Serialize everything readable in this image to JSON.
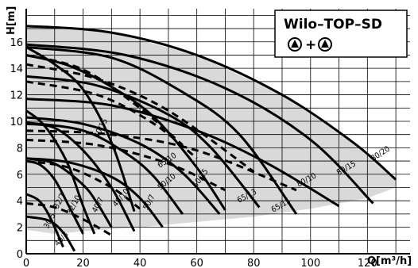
{
  "chart_data": {
    "type": "line",
    "title": "Wilo–TOP–SD",
    "symbol_plus": "+",
    "xlabel": "Q[m³/h]",
    "ylabel": "H[m]",
    "xlim": [
      0,
      135
    ],
    "ylim": [
      0,
      18.5
    ],
    "x_ticks": [
      0,
      20,
      40,
      60,
      80,
      100,
      120
    ],
    "x_tick_labels": [
      "0",
      "20",
      "40",
      "60",
      "80",
      "100",
      "120"
    ],
    "y_ticks": [
      0,
      2,
      4,
      6,
      8,
      10,
      12,
      14,
      16
    ],
    "y_tick_labels": [
      "0",
      "2",
      "4",
      "6",
      "8",
      "10",
      "12",
      "14",
      "16"
    ],
    "grid": true,
    "series": [
      {
        "name": "30/5",
        "style": "solid",
        "label_at": [
          9,
          2.4
        ],
        "label_angle": -62,
        "x": [
          0,
          4,
          7,
          10,
          13
        ],
        "y": [
          4.5,
          4.1,
          3.3,
          2.0,
          0.5
        ]
      },
      {
        "name": "40/3",
        "style": "solid",
        "label_at": [
          13,
          1.0
        ],
        "label_angle": -48,
        "x": [
          0,
          8,
          13,
          17
        ],
        "y": [
          2.8,
          2.5,
          1.6,
          0.2
        ]
      },
      {
        "name": "32/7",
        "style": "solid",
        "label_at": [
          12.5,
          3.9
        ],
        "label_angle": -62,
        "x": [
          0,
          5,
          10,
          15,
          20
        ],
        "y": [
          7.0,
          6.7,
          5.6,
          3.6,
          1.5
        ]
      },
      {
        "name": "32/10",
        "style": "solid",
        "label_at": [
          17.5,
          3.6
        ],
        "label_angle": -62,
        "x": [
          0,
          5,
          10,
          15,
          20,
          24
        ],
        "y": [
          10.8,
          10.0,
          8.6,
          6.6,
          3.6,
          1.5
        ]
      },
      {
        "name": "40/7",
        "style": "solid",
        "label_at": [
          26,
          3.6
        ],
        "label_angle": -62,
        "x": [
          0,
          10,
          20,
          25,
          30
        ],
        "y": [
          7.2,
          6.8,
          5.2,
          3.8,
          2.0
        ]
      },
      {
        "name": "40/10",
        "style": "solid",
        "label_at": [
          34,
          4.1
        ],
        "label_angle": -50,
        "x": [
          0,
          10,
          20,
          30,
          38
        ],
        "y": [
          9.8,
          9.5,
          7.8,
          5.0,
          1.7
        ]
      },
      {
        "name": "50/7",
        "style": "solid",
        "label_at": [
          44,
          3.8
        ],
        "label_angle": -62,
        "x": [
          0,
          15,
          30,
          40,
          48
        ],
        "y": [
          7.2,
          6.9,
          5.8,
          4.2,
          2.0
        ]
      },
      {
        "name": "50/10",
        "style": "solid",
        "label_at": [
          50,
          5.3
        ],
        "label_angle": -40,
        "x": [
          0,
          20,
          35,
          45,
          55
        ],
        "y": [
          9.9,
          9.3,
          7.6,
          5.8,
          3.0
        ]
      },
      {
        "name": "65/10",
        "style": "solid",
        "label_at": [
          50,
          6.9
        ],
        "label_angle": -34,
        "x": [
          0,
          20,
          40,
          55,
          68
        ],
        "y": [
          10.3,
          9.8,
          8.3,
          6.1,
          3.0
        ]
      },
      {
        "name": "65/13",
        "style": "solid",
        "label_at": [
          78,
          4.2
        ],
        "label_angle": -28,
        "x": [
          0,
          25,
          50,
          65,
          82
        ],
        "y": [
          13.4,
          12.7,
          10.5,
          8.0,
          3.5
        ]
      },
      {
        "name": "65/15",
        "style": "solid",
        "label_at": [
          90,
          3.5
        ],
        "label_angle": -30,
        "x": [
          0,
          30,
          55,
          75,
          95
        ],
        "y": [
          15.6,
          14.8,
          12.2,
          9.0,
          3.0
        ]
      },
      {
        "name": "50/15",
        "style": "solid",
        "label_at": [
          62,
          5.6
        ],
        "label_angle": -55,
        "x": [
          0,
          15,
          30,
          45,
          60,
          70
        ],
        "y": [
          15.0,
          14.2,
          12.6,
          10.3,
          6.5,
          3.3
        ]
      },
      {
        "name": "40/15",
        "style": "solid",
        "label_at": [
          27,
          9.4
        ],
        "label_angle": -62,
        "x": [
          0,
          10,
          20,
          30,
          38
        ],
        "y": [
          15.6,
          14.3,
          12.4,
          8.4,
          3.2
        ]
      },
      {
        "name": "80/10",
        "style": "solid",
        "label_at": [
          99,
          5.4
        ],
        "label_angle": -28,
        "x": [
          0,
          30,
          60,
          85,
          110
        ],
        "y": [
          11.7,
          11.2,
          9.3,
          6.8,
          3.6
        ]
      },
      {
        "name": "80/15",
        "style": "solid",
        "label_at": [
          113,
          6.3
        ],
        "label_angle": -30,
        "x": [
          0,
          35,
          70,
          100,
          122
        ],
        "y": [
          15.8,
          15.0,
          12.5,
          8.6,
          3.8
        ]
      },
      {
        "name": "80/20",
        "style": "solid",
        "label_at": [
          125,
          7.4
        ],
        "label_angle": -33,
        "x": [
          0,
          30,
          60,
          90,
          115,
          130
        ],
        "y": [
          17.2,
          16.7,
          15.0,
          12.0,
          8.4,
          5.6
        ]
      },
      {
        "name": "",
        "style": "dashed",
        "x": [
          0,
          10,
          20,
          30
        ],
        "y": [
          3.8,
          3.5,
          2.6,
          1.4
        ]
      },
      {
        "name": "",
        "style": "dashed",
        "x": [
          0,
          15,
          30,
          40
        ],
        "y": [
          7.0,
          6.5,
          5.0,
          3.4
        ]
      },
      {
        "name": "",
        "style": "dashed",
        "x": [
          0,
          25,
          50,
          70
        ],
        "y": [
          8.6,
          8.2,
          6.8,
          4.8
        ]
      },
      {
        "name": "",
        "style": "dashed",
        "x": [
          0,
          25,
          45,
          60
        ],
        "y": [
          13.0,
          12.0,
          9.8,
          7.2
        ]
      },
      {
        "name": "",
        "style": "dashed",
        "x": [
          0,
          25,
          50,
          80
        ],
        "y": [
          14.3,
          13.2,
          10.8,
          6.2
        ]
      },
      {
        "name": "",
        "style": "dashed",
        "x": [
          0,
          20,
          40,
          55
        ],
        "y": [
          15.0,
          13.9,
          11.0,
          8.2
        ]
      },
      {
        "name": "",
        "style": "dashed",
        "x": [
          0,
          30,
          60,
          95
        ],
        "y": [
          9.3,
          9.0,
          7.8,
          4.8
        ]
      }
    ],
    "envelope": {
      "x": [
        0,
        30,
        60,
        90,
        115,
        130,
        130,
        120,
        100,
        80,
        60,
        40,
        20,
        10,
        0
      ],
      "y": [
        17.2,
        16.7,
        15.0,
        12.0,
        8.4,
        5.6,
        5.0,
        4.2,
        3.4,
        2.8,
        2.4,
        2.0,
        1.7,
        1.5,
        1.8
      ]
    },
    "colors": {
      "shade": "#d9d9d9",
      "grid": "#000000",
      "curve": "#000000",
      "background": "#ffffff"
    }
  }
}
